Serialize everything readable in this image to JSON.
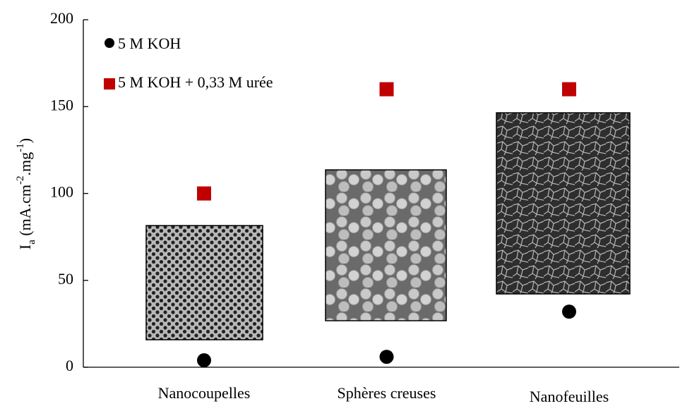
{
  "chart_data": {
    "type": "scatter",
    "ylabel": [
      "I",
      "a",
      " (mA.cm",
      "-2",
      ".mg",
      "-1",
      ")"
    ],
    "categories": [
      "Nanocoupelles",
      "Sphères creuses",
      "Nanofeuilles"
    ],
    "series": [
      {
        "name": "5 M KOH",
        "color": "#000000",
        "marker": "circle",
        "values": [
          4,
          6,
          32
        ]
      },
      {
        "name": "5 M KOH + 0,33 M urée",
        "color": "#c00000",
        "marker": "square",
        "values": [
          100,
          160,
          160
        ]
      }
    ],
    "ylim": [
      0,
      200
    ],
    "yticks": [
      0,
      50,
      100,
      150,
      200
    ],
    "grid": false,
    "legend": "top-left"
  }
}
